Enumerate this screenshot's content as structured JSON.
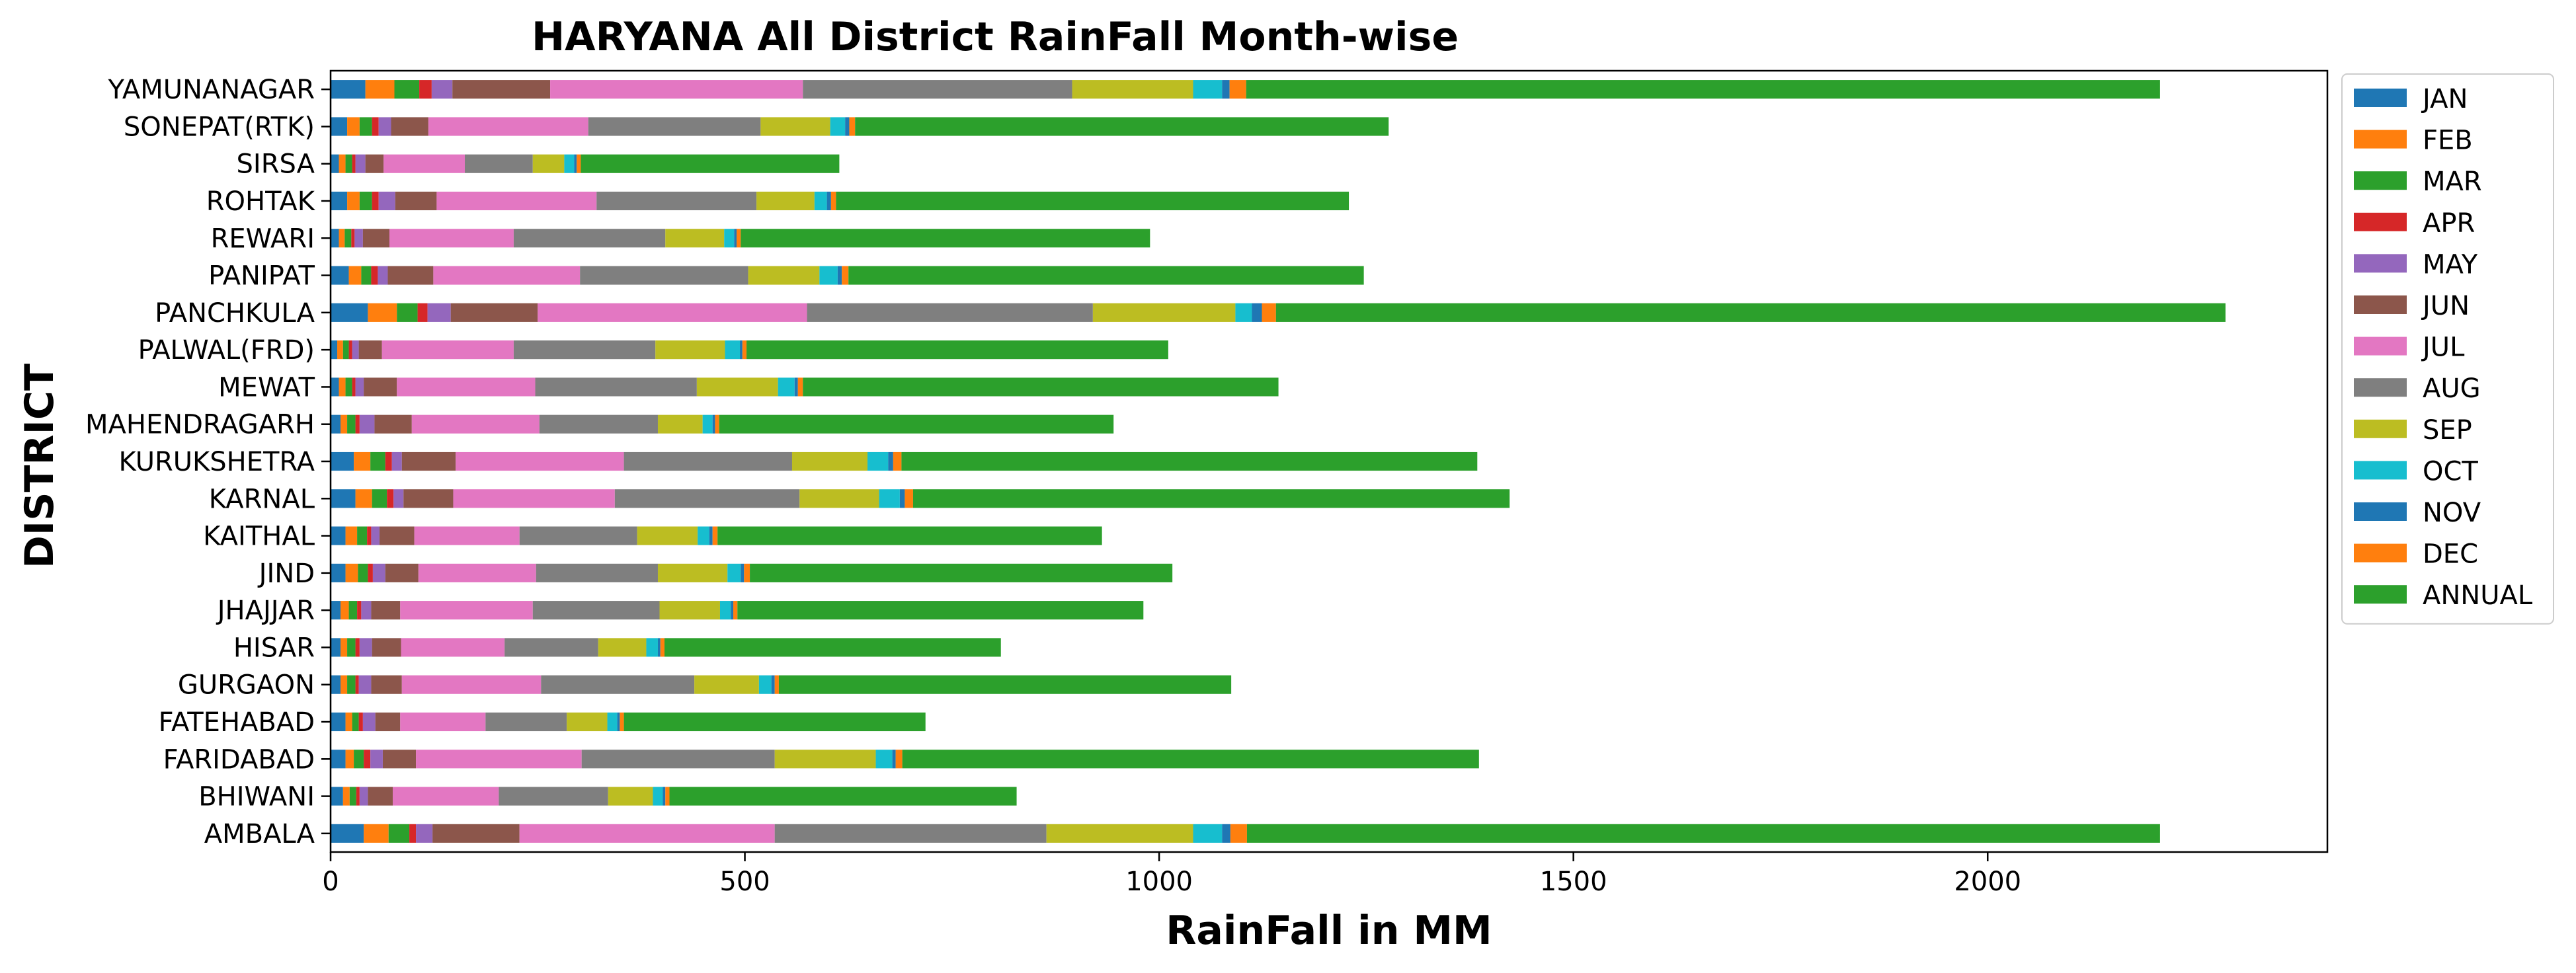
{
  "chart_data": {
    "type": "bar",
    "orientation": "horizontal",
    "stacked": true,
    "title": "HARYANA All District RainFall Month-wise",
    "xlabel": "RainFall in MM",
    "ylabel": "DISTRICT",
    "xlim": [
      0,
      2410
    ],
    "xticks": [
      0,
      500,
      1000,
      1500,
      2000
    ],
    "grid": false,
    "legend_position": "right-outside",
    "categories": [
      "AMBALA",
      "BHIWANI",
      "FARIDABAD",
      "FATEHABAD",
      "GURGAON",
      "HISAR",
      "JHAJJAR",
      "JIND",
      "KAITHAL",
      "KARNAL",
      "KURUKSHETRA",
      "MAHENDRAGARH",
      "MEWAT",
      "PALWAL(FRD)",
      "PANCHKULA",
      "PANIPAT",
      "REWARI",
      "ROHTAK",
      "SIRSA",
      "SONEPAT(RTK)",
      "YAMUNANAGAR"
    ],
    "series": [
      {
        "name": "JAN",
        "color": "#1f77b4",
        "values": [
          40,
          15,
          18,
          18,
          12,
          12,
          12,
          18,
          18,
          30,
          28,
          12,
          10,
          8,
          45,
          22,
          10,
          20,
          10,
          20,
          42
        ]
      },
      {
        "name": "FEB",
        "color": "#ff7f0e",
        "values": [
          30,
          8,
          10,
          8,
          8,
          8,
          10,
          15,
          14,
          20,
          20,
          8,
          8,
          7,
          35,
          15,
          7,
          15,
          8,
          15,
          35
        ]
      },
      {
        "name": "MAR",
        "color": "#2ca02c",
        "values": [
          25,
          8,
          12,
          8,
          10,
          10,
          10,
          12,
          12,
          18,
          18,
          10,
          8,
          7,
          25,
          12,
          8,
          15,
          8,
          15,
          30
        ]
      },
      {
        "name": "APR",
        "color": "#d62728",
        "values": [
          8,
          4,
          8,
          5,
          4,
          5,
          5,
          6,
          5,
          8,
          8,
          5,
          4,
          4,
          12,
          8,
          4,
          8,
          4,
          8,
          15
        ]
      },
      {
        "name": "MAY",
        "color": "#9467bd",
        "values": [
          20,
          10,
          15,
          15,
          15,
          15,
          12,
          15,
          10,
          12,
          12,
          18,
          10,
          8,
          28,
          12,
          10,
          20,
          12,
          15,
          25
        ]
      },
      {
        "name": "JUN",
        "color": "#8c564b",
        "values": [
          105,
          30,
          40,
          30,
          37,
          35,
          35,
          40,
          42,
          60,
          65,
          45,
          40,
          28,
          105,
          55,
          32,
          50,
          22,
          45,
          118
        ]
      },
      {
        "name": "JUL",
        "color": "#e377c2",
        "values": [
          308,
          128,
          200,
          103,
          168,
          125,
          160,
          142,
          127,
          195,
          203,
          154,
          167,
          159,
          325,
          177,
          150,
          193,
          98,
          193,
          305
        ]
      },
      {
        "name": "AUG",
        "color": "#7f7f7f",
        "values": [
          328,
          132,
          233,
          98,
          185,
          113,
          153,
          147,
          142,
          223,
          203,
          143,
          195,
          171,
          345,
          203,
          183,
          193,
          82,
          208,
          325
        ]
      },
      {
        "name": "SEP",
        "color": "#bcbd22",
        "values": [
          177,
          54,
          122,
          49,
          78,
          58,
          73,
          84,
          73,
          96,
          91,
          54,
          98,
          84,
          172,
          86,
          71,
          70,
          38,
          84,
          146
        ]
      },
      {
        "name": "OCT",
        "color": "#17becf",
        "values": [
          35,
          12,
          20,
          12,
          15,
          14,
          13,
          16,
          14,
          25,
          25,
          12,
          20,
          18,
          20,
          22,
          12,
          15,
          12,
          18,
          35
        ]
      },
      {
        "name": "NOV",
        "color": "#1f77b4",
        "values": [
          10,
          3,
          4,
          3,
          4,
          3,
          3,
          4,
          4,
          6,
          6,
          3,
          4,
          3,
          12,
          5,
          3,
          5,
          3,
          5,
          9
        ]
      },
      {
        "name": "DEC",
        "color": "#ff7f0e",
        "values": [
          20,
          5,
          8,
          5,
          5,
          5,
          5,
          7,
          6,
          10,
          10,
          5,
          6,
          5,
          17,
          8,
          5,
          6,
          5,
          7,
          20
        ]
      },
      {
        "name": "ANNUAL",
        "color": "#2ca02c",
        "values": [
          1102,
          419,
          696,
          364,
          546,
          406,
          490,
          510,
          464,
          720,
          695,
          476,
          574,
          509,
          1146,
          622,
          494,
          619,
          312,
          644,
          1103
        ]
      }
    ]
  }
}
